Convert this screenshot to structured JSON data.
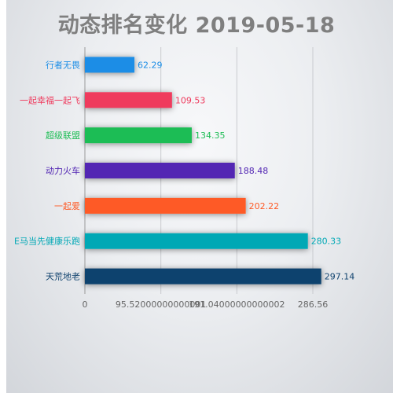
{
  "chart_data": {
    "type": "bar",
    "orientation": "horizontal",
    "title": "动态排名变化 2019-05-18",
    "categories": [
      "行者无畏",
      "一起幸福一起飞",
      "超级联盟",
      "动力火车",
      "一起爱",
      "E马当先健康乐跑",
      "天荒地老"
    ],
    "values": [
      62.29,
      109.53,
      134.35,
      188.48,
      202.22,
      280.33,
      297.14
    ],
    "value_labels": [
      "62.29",
      "109.53",
      "134.35",
      "188.48",
      "202.22",
      "280.33",
      "297.14"
    ],
    "colors": [
      "#1a8de6",
      "#ef3a5d",
      "#1dbd55",
      "#5226b3",
      "#fe5a26",
      "#00a8b5",
      "#10426e"
    ],
    "x_ticks": [
      {
        "value": 0,
        "label": "0"
      },
      {
        "value": 95.52,
        "label": "95.52000000000001"
      },
      {
        "value": 191.04,
        "label": "191.04000000000002"
      },
      {
        "value": 286.56,
        "label": "286.56"
      }
    ],
    "xlim": [
      0,
      286.56
    ],
    "grid": true,
    "xlabel": "",
    "ylabel": ""
  }
}
